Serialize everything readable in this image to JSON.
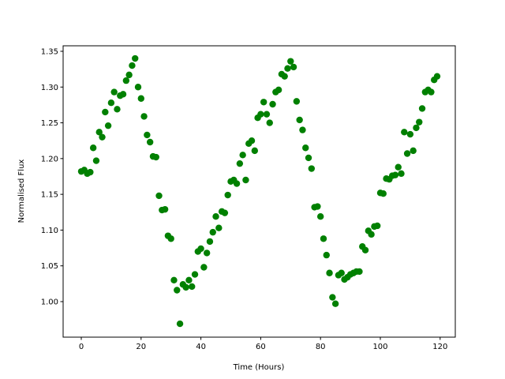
{
  "chart_data": {
    "type": "scatter",
    "x_label": "Time (Hours)",
    "y_label": "Normalised Flux",
    "color": "#008000",
    "xlim": [
      -6.07,
      125.07
    ],
    "ylim": [
      0.9503,
      1.3577
    ],
    "xticks": [
      0,
      20,
      40,
      60,
      80,
      100,
      120
    ],
    "yticks": [
      {
        "value": 1.0,
        "label": "1.00"
      },
      1.05,
      {
        "value": 1.1,
        "label": "1.10"
      },
      1.15,
      {
        "value": 1.2,
        "label": "1.20"
      },
      1.25,
      {
        "value": 1.3,
        "label": "1.30"
      },
      1.35
    ],
    "x": [
      0,
      1,
      2,
      3,
      4,
      5,
      6,
      7,
      8,
      9,
      10,
      11,
      12,
      13,
      14,
      15,
      16,
      17,
      18,
      19,
      20,
      21,
      22,
      23,
      24,
      25,
      26,
      27,
      28,
      29,
      30,
      31,
      32,
      33,
      34,
      35,
      36,
      37,
      38,
      39,
      40,
      41,
      42,
      43,
      44,
      45,
      46,
      47,
      48,
      49,
      50,
      51,
      52,
      53,
      54,
      55,
      56,
      57,
      58,
      59,
      60,
      61,
      62,
      63,
      64,
      65,
      66,
      67,
      68,
      69,
      70,
      71,
      72,
      73,
      74,
      75,
      76,
      77,
      78,
      79,
      80,
      81,
      82,
      83,
      84,
      85,
      86,
      87,
      88,
      89,
      90,
      91,
      92,
      93,
      94,
      95,
      96,
      97,
      98,
      99,
      100,
      101,
      102,
      103,
      104,
      105,
      106,
      107,
      108,
      109,
      110,
      111,
      112,
      113,
      114,
      115,
      116,
      117,
      118,
      119
    ],
    "values": [
      1.182,
      1.184,
      1.179,
      1.181,
      1.215,
      1.197,
      1.237,
      1.23,
      1.265,
      1.246,
      1.278,
      1.293,
      1.269,
      1.288,
      1.29,
      1.309,
      1.317,
      1.33,
      1.34,
      1.3,
      1.284,
      1.259,
      1.233,
      1.223,
      1.203,
      1.202,
      1.148,
      1.128,
      1.129,
      1.092,
      1.088,
      1.03,
      1.016,
      0.969,
      1.024,
      1.02,
      1.03,
      1.021,
      1.038,
      1.07,
      1.074,
      1.048,
      1.068,
      1.084,
      1.097,
      1.119,
      1.103,
      1.126,
      1.124,
      1.149,
      1.168,
      1.17,
      1.165,
      1.193,
      1.205,
      1.17,
      1.221,
      1.225,
      1.211,
      1.257,
      1.262,
      1.279,
      1.262,
      1.25,
      1.276,
      1.293,
      1.296,
      1.318,
      1.315,
      1.326,
      1.336,
      1.328,
      1.28,
      1.254,
      1.24,
      1.215,
      1.201,
      1.186,
      1.132,
      1.133,
      1.119,
      1.088,
      1.065,
      1.04,
      1.006,
      0.997,
      1.037,
      1.04,
      1.031,
      1.034,
      1.038,
      1.04,
      1.042,
      1.042,
      1.077,
      1.072,
      1.099,
      1.094,
      1.105,
      1.106,
      1.152,
      1.151,
      1.172,
      1.171,
      1.176,
      1.177,
      1.188,
      1.179,
      1.237,
      1.207,
      1.234,
      1.211,
      1.243,
      1.251,
      1.27,
      1.293,
      1.296,
      1.293,
      1.31,
      1.315
    ]
  }
}
